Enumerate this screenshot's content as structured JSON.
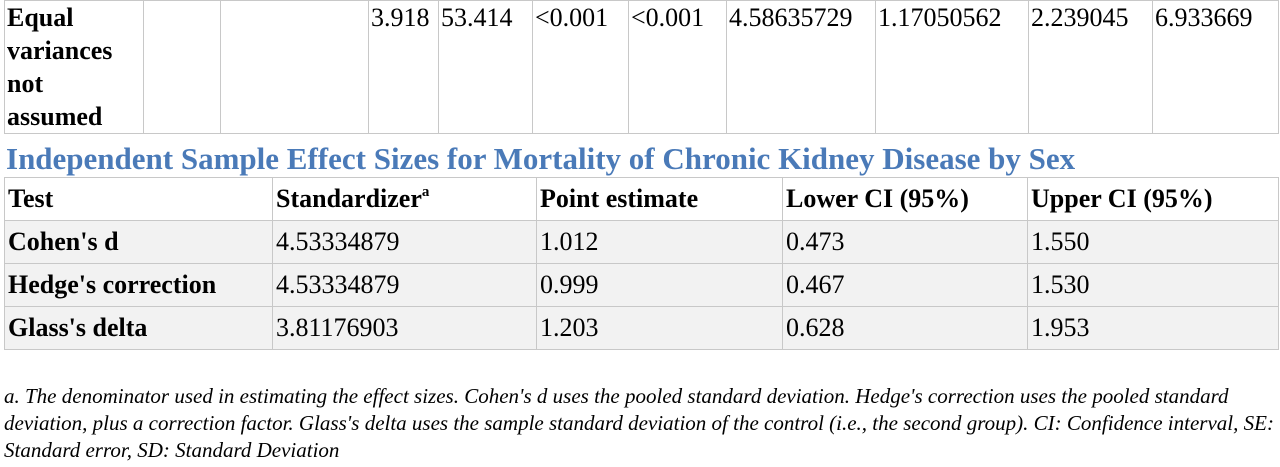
{
  "top_table": {
    "row_label": "Equal variances not assumed",
    "cells": [
      "",
      "",
      "3.918",
      "53.414",
      "<0.001",
      "<0.001",
      "4.58635729",
      "1.17050562",
      "2.239045",
      "6.933669"
    ]
  },
  "effect_section": {
    "title": "Independent Sample Effect Sizes for Mortality of Chronic Kidney Disease by Sex",
    "headers": {
      "test": "Test",
      "standardizer": "Standardizer",
      "standardizer_sup": "a",
      "point_estimate": "Point estimate",
      "lower_ci": "Lower CI (95%)",
      "upper_ci": "Upper CI (95%)"
    },
    "rows": [
      {
        "test": "Cohen's d",
        "standardizer": "4.53334879",
        "point_estimate": "1.012",
        "lower_ci": "0.473",
        "upper_ci": "1.550"
      },
      {
        "test": "Hedge's correction",
        "standardizer": "4.53334879",
        "point_estimate": "0.999",
        "lower_ci": "0.467",
        "upper_ci": "1.530"
      },
      {
        "test": "Glass's delta",
        "standardizer": "3.81176903",
        "point_estimate": "1.203",
        "lower_ci": "0.628",
        "upper_ci": "1.953"
      }
    ]
  },
  "footnote": "a. The denominator used in estimating the effect sizes. Cohen's d uses the pooled standard deviation. Hedge's correction uses the pooled standard deviation, plus a correction factor. Glass's delta uses the sample standard deviation of the control (i.e., the second group). CI: Confidence interval, SE: Standard error, SD: Standard Deviation"
}
